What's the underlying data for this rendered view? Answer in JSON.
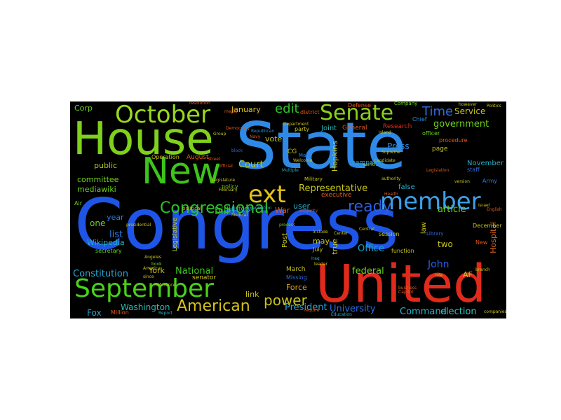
{
  "words": [
    {
      "text": "Congress",
      "color": "#1f55e6"
    },
    {
      "text": "State",
      "color": "#2e8ae6"
    },
    {
      "text": "United",
      "color": "#e02a1c"
    },
    {
      "text": "House",
      "color": "#7fd11c"
    },
    {
      "text": "New",
      "color": "#3ec41a"
    },
    {
      "text": "September",
      "color": "#49d11a"
    },
    {
      "text": "October",
      "color": "#9ad81c"
    },
    {
      "text": "member",
      "color": "#3aa0e8"
    },
    {
      "text": "Senate",
      "color": "#8bd01c"
    },
    {
      "text": "ext",
      "color": "#e0c21a"
    },
    {
      "text": "Congressional",
      "color": "#2ec42a"
    },
    {
      "text": "American",
      "color": "#d6c21c"
    },
    {
      "text": "ready",
      "color": "#2e5ee0"
    },
    {
      "text": "power",
      "color": "#c9c41a"
    },
    {
      "text": "edit",
      "color": "#2ec42a"
    },
    {
      "text": "Time",
      "color": "#2e6ee0"
    },
    {
      "text": "Representative",
      "color": "#c8c41c"
    },
    {
      "text": "Court",
      "color": "#b8c81c"
    },
    {
      "text": "Washington",
      "color": "#26b8b0"
    },
    {
      "text": "National",
      "color": "#3ec41a"
    },
    {
      "text": "Constitution",
      "color": "#26a8d0"
    },
    {
      "text": "Office",
      "color": "#1ea2c8"
    },
    {
      "text": "election",
      "color": "#2ec4c0"
    },
    {
      "text": "Command",
      "color": "#26b2c8"
    },
    {
      "text": "President",
      "color": "#26a4d8"
    },
    {
      "text": "University",
      "color": "#2a6ee0"
    },
    {
      "text": "John",
      "color": "#2a5ee0"
    },
    {
      "text": "federal",
      "color": "#6ed01a"
    },
    {
      "text": "article",
      "color": "#6ed01a"
    },
    {
      "text": "government",
      "color": "#6ed01a"
    },
    {
      "text": "Service",
      "color": "#c8c41c"
    },
    {
      "text": "Joint",
      "color": "#26b6b8"
    },
    {
      "text": "January",
      "color": "#d6c21c"
    },
    {
      "text": "Press",
      "color": "#2e8ae0"
    },
    {
      "text": "vote",
      "color": "#c8c41c"
    },
    {
      "text": "bill",
      "color": "#2ec42a"
    },
    {
      "text": "list",
      "color": "#2e7ad8"
    },
    {
      "text": "one",
      "color": "#6ed01a"
    },
    {
      "text": "year",
      "color": "#2e7ad8"
    },
    {
      "text": "Wikipedia",
      "color": "#26b0b8"
    },
    {
      "text": "mediawiki",
      "color": "#6ed01a"
    },
    {
      "text": "committee",
      "color": "#6ed01a"
    },
    {
      "text": "public",
      "color": "#b8c81c"
    },
    {
      "text": "Corp",
      "color": "#6ed01a"
    },
    {
      "text": "Fox",
      "color": "#26a8d0"
    },
    {
      "text": "link",
      "color": "#c8c41c"
    },
    {
      "text": "York",
      "color": "#c8c41c"
    },
    {
      "text": "War",
      "color": "#e05a1c"
    },
    {
      "text": "user",
      "color": "#26b0c8"
    },
    {
      "text": "false",
      "color": "#26b0c8"
    },
    {
      "text": "two",
      "color": "#c8c41c"
    },
    {
      "text": "may",
      "color": "#c8c41c"
    },
    {
      "text": "true",
      "color": "#c8c41c"
    },
    {
      "text": "Force",
      "color": "#e0a01c"
    },
    {
      "text": "AF",
      "color": "#c8c41c"
    },
    {
      "text": "Hopkins",
      "color": "#c8c41c"
    },
    {
      "text": "Hospital",
      "color": "#e06a1c"
    },
    {
      "text": "November",
      "color": "#26b0c8"
    },
    {
      "text": "December",
      "color": "#c8c41c"
    },
    {
      "text": "secretary",
      "color": "#6ed01a"
    },
    {
      "text": "senator",
      "color": "#c8c41c"
    },
    {
      "text": "law",
      "color": "#c8c41c"
    },
    {
      "text": "Post",
      "color": "#c8c41c"
    },
    {
      "text": "August",
      "color": "#e05a1c"
    },
    {
      "text": "History",
      "color": "#26b0c8"
    },
    {
      "text": "campaign",
      "color": "#26a4d8"
    },
    {
      "text": "page",
      "color": "#c8c41c"
    },
    {
      "text": "CG",
      "color": "#c8c41c"
    },
    {
      "text": "Defense",
      "color": "#e05a1c"
    },
    {
      "text": "General",
      "color": "#e05a1c"
    },
    {
      "text": "Research",
      "color": "#e0301c"
    },
    {
      "text": "Army",
      "color": "#2e6ee0"
    },
    {
      "text": "policy",
      "color": "#6ed01a"
    },
    {
      "text": "Legislative",
      "color": "#c8c41c"
    },
    {
      "text": "Operation",
      "color": "#c8c41c"
    },
    {
      "text": "executive",
      "color": "#e05a1c"
    },
    {
      "text": "March",
      "color": "#c8c41c"
    },
    {
      "text": "July",
      "color": "#c8c41c"
    },
    {
      "text": "Air",
      "color": "#6ed01a"
    },
    {
      "text": "Million",
      "color": "#e05a1c"
    },
    {
      "text": "Missing",
      "color": "#2e6ee0"
    },
    {
      "text": "Military",
      "color": "#c8c41c"
    },
    {
      "text": "session",
      "color": "#c8c41c"
    },
    {
      "text": "function",
      "color": "#c8c41c"
    },
    {
      "text": "Library",
      "color": "#2e6ee0"
    },
    {
      "text": "district",
      "color": "#e05a1c"
    },
    {
      "text": "party",
      "color": "#c8c41c"
    },
    {
      "text": "procedure",
      "color": "#e05a1c"
    },
    {
      "text": "Chief",
      "color": "#2e8ae0"
    },
    {
      "text": "officer",
      "color": "#6ed01a"
    },
    {
      "text": "staff",
      "color": "#2e6ee0"
    },
    {
      "text": "Center",
      "color": "#c8c41c"
    },
    {
      "text": "Legislation",
      "color": "#e05a1c"
    },
    {
      "text": "Health",
      "color": "#e05a1c"
    },
    {
      "text": "Navy",
      "color": "#e05a1c"
    },
    {
      "text": "Republican",
      "color": "#2e8ae0"
    },
    {
      "text": "Democracy",
      "color": "#e05a1c"
    },
    {
      "text": "Capitol",
      "color": "#e05a1c"
    },
    {
      "text": "Education",
      "color": "#26b0c8"
    },
    {
      "text": "Company",
      "color": "#6ed01a"
    },
    {
      "text": "Politics",
      "color": "#c8c41c"
    },
    {
      "text": "companies",
      "color": "#c8c41c"
    },
    {
      "text": "presidential",
      "color": "#c8c41c"
    },
    {
      "text": "America",
      "color": "#c8c41c"
    },
    {
      "text": "Main",
      "color": "#2e8ae0"
    },
    {
      "text": "Angeles",
      "color": "#c8c41c"
    },
    {
      "text": "official",
      "color": "#e05a1c"
    },
    {
      "text": "block",
      "color": "#2e6ee0"
    },
    {
      "text": "Multiple",
      "color": "#26b0c8"
    },
    {
      "text": "role",
      "color": "#c8c41c"
    },
    {
      "text": "Report",
      "color": "#26b0c8"
    },
    {
      "text": "English",
      "color": "#e05a1c"
    },
    {
      "text": "since",
      "color": "#c8c41c"
    },
    {
      "text": "Reference",
      "color": "#c8c41c"
    },
    {
      "text": "Welcome",
      "color": "#c8c41c"
    },
    {
      "text": "majority",
      "color": "#e05a1c"
    },
    {
      "text": "Central",
      "color": "#c8c41c"
    },
    {
      "text": "Supreme",
      "color": "#c8c41c"
    },
    {
      "text": "candidate",
      "color": "#c8c41c"
    },
    {
      "text": "process",
      "color": "#6ed01a"
    },
    {
      "text": "Iraq",
      "color": "#26b0c8"
    },
    {
      "text": "require",
      "color": "#e05a1c"
    },
    {
      "text": "version",
      "color": "#c8c41c"
    },
    {
      "text": "leader",
      "color": "#c8c41c"
    },
    {
      "text": "organization",
      "color": "#26b0c8"
    },
    {
      "text": "political",
      "color": "#c8c41c"
    },
    {
      "text": "world",
      "color": "#c8c41c"
    },
    {
      "text": "resolution",
      "color": "#e05a1c"
    },
    {
      "text": "book",
      "color": "#6ed01a"
    },
    {
      "text": "business",
      "color": "#e05a1c"
    },
    {
      "text": "Island",
      "color": "#c8c41c"
    },
    {
      "text": "authority",
      "color": "#c8c41c"
    },
    {
      "text": "branch",
      "color": "#c8c41c"
    },
    {
      "text": "Department",
      "color": "#c8c41c"
    },
    {
      "text": "include",
      "color": "#c8c41c"
    },
    {
      "text": "however",
      "color": "#c8c41c"
    },
    {
      "text": "media",
      "color": "#e05a1c"
    },
    {
      "text": "Group",
      "color": "#c8c41c"
    },
    {
      "text": "Medical",
      "color": "#c8c41c"
    },
    {
      "text": "Street",
      "color": "#e05a1c"
    },
    {
      "text": "Legislature",
      "color": "#c8c41c"
    },
    {
      "text": "February",
      "color": "#c8c41c"
    },
    {
      "text": "Israel",
      "color": "#c8c41c"
    },
    {
      "text": "New",
      "color": "#e05a1c"
    }
  ]
}
